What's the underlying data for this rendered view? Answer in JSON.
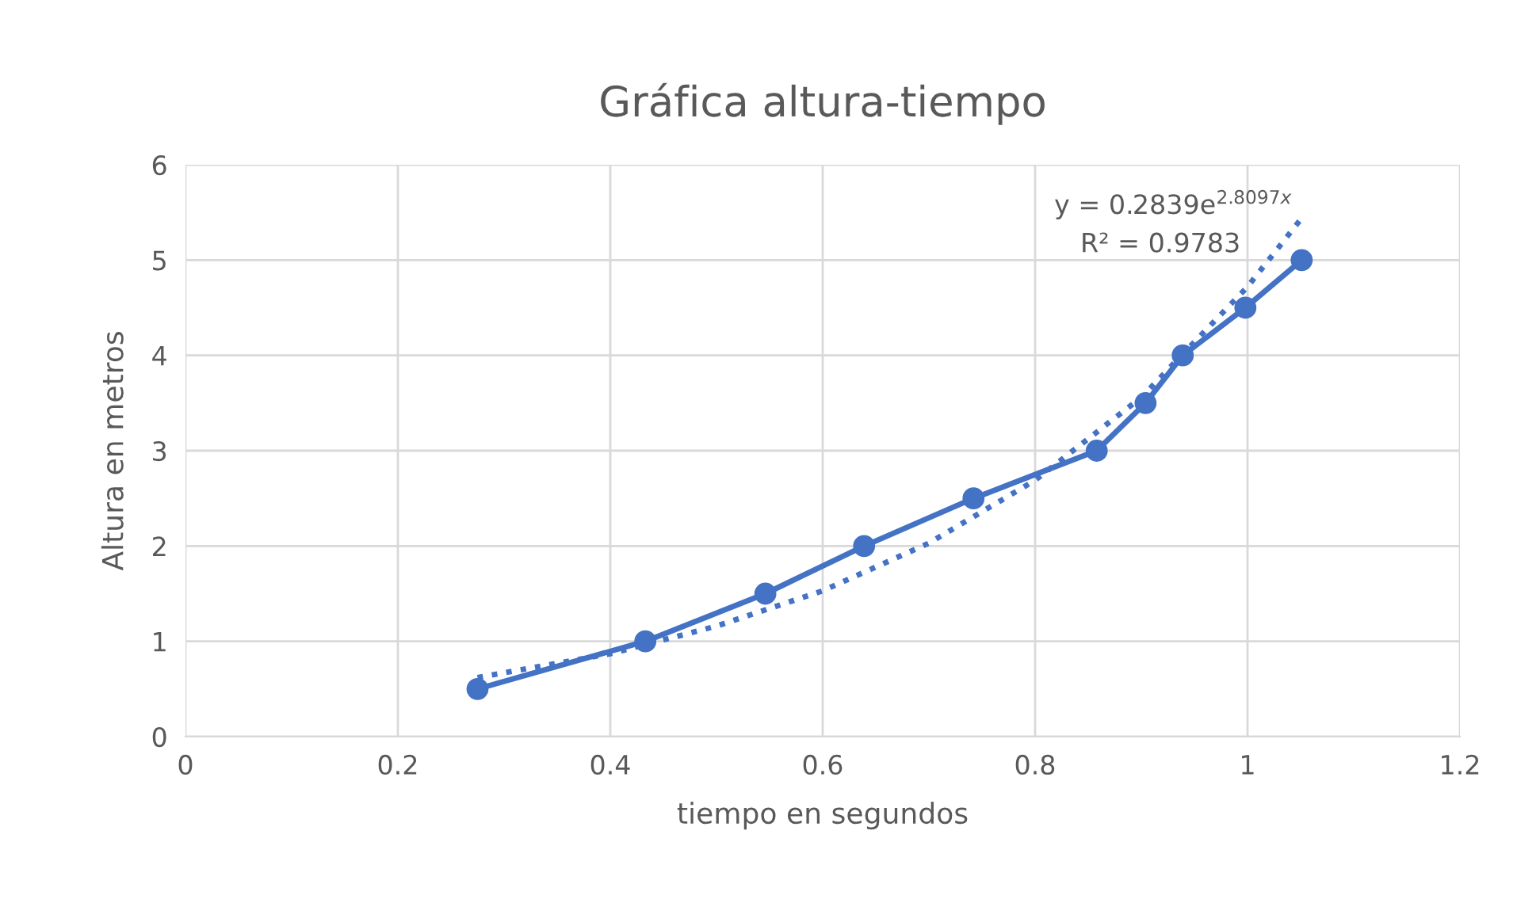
{
  "chart_data": {
    "type": "line",
    "title": "Gráfica altura-tiempo",
    "xlabel": "tiempo en segundos",
    "ylabel": "Altura en metros",
    "series": [
      {
        "color": "#4472c4",
        "marker": "circle",
        "line_style": "solid",
        "x": [
          0.275,
          0.433,
          0.546,
          0.639,
          0.742,
          0.858,
          0.904,
          0.939,
          0.998,
          1.051
        ],
        "values": [
          0.5,
          1,
          1.5,
          2,
          2.5,
          3,
          3.5,
          4,
          4.5,
          5
        ]
      },
      {
        "color": "#4472c4",
        "marker": "none",
        "line_style": "dotted",
        "x": [
          0.275,
          0.4,
          0.5,
          0.6,
          0.7,
          0.8,
          0.9,
          1.0,
          1.051
        ],
        "values": [
          0.62,
          0.87,
          1.16,
          1.53,
          2.03,
          2.69,
          3.56,
          4.72,
          5.44
        ]
      }
    ],
    "annotations": [
      "y = 0.2839e$^{2.8097x}$",
      "R² = 0.9783"
    ],
    "xlim": [
      0,
      1.2
    ],
    "xticks": [
      0,
      0.2,
      0.4,
      0.6,
      0.8,
      1,
      1.2
    ],
    "ylim": [
      0,
      6
    ],
    "yticks": [
      0,
      1,
      2,
      3,
      4,
      5,
      6
    ],
    "grid": true,
    "legend": false
  }
}
